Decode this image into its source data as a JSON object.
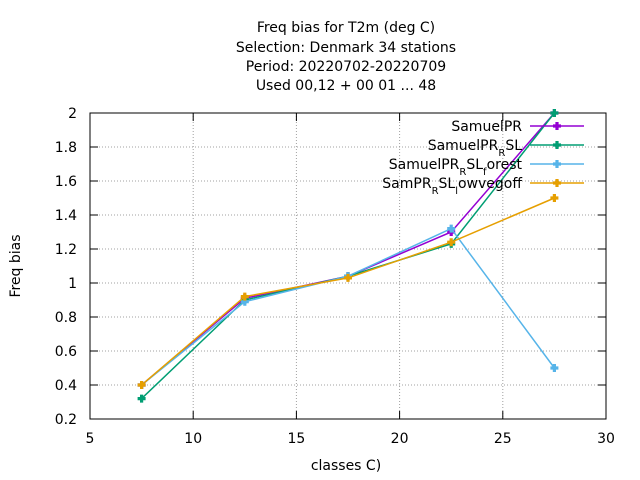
{
  "chart_data": {
    "type": "line",
    "title": [
      "Freq bias  for T2m (deg C)",
      "Selection: Denmark      34 stations",
      "Period: 20220702-20220709",
      "Used  00,12  + 00 01 ... 48"
    ],
    "xlabel": "classes C)",
    "ylabel": "Freq bias",
    "xlim": [
      5,
      30
    ],
    "ylim": [
      0.2,
      2
    ],
    "xticks": [
      5,
      10,
      15,
      20,
      25,
      30
    ],
    "yticks": [
      0.2,
      0.4,
      0.6,
      0.8,
      1,
      1.2,
      1.4,
      1.6,
      1.8,
      2
    ],
    "grid": true,
    "legend_position": "top-right",
    "series": [
      {
        "name": "SamuelPR",
        "legend": [
          {
            "t": "SamuelPR"
          }
        ],
        "color": "#9400d3",
        "x": [
          7.5,
          12.5,
          17.5,
          22.5,
          27.5
        ],
        "y": [
          0.4,
          0.91,
          1.04,
          1.3,
          2.0
        ]
      },
      {
        "name": "SamuelPR_R SL",
        "legend": [
          {
            "t": "SamuelPR"
          },
          {
            "t": "R",
            "sub": true
          },
          {
            "t": "SL"
          }
        ],
        "color": "#009e73",
        "x": [
          7.5,
          12.5,
          17.5,
          22.5,
          27.5
        ],
        "y": [
          0.32,
          0.9,
          1.04,
          1.23,
          2.0
        ]
      },
      {
        "name": "SamuelPR_R SL_f orest",
        "legend": [
          {
            "t": "SamuelPR"
          },
          {
            "t": "R",
            "sub": true
          },
          {
            "t": "SL"
          },
          {
            "t": "f",
            "sub": true
          },
          {
            "t": "orest"
          }
        ],
        "color": "#56b4e9",
        "x": [
          7.5,
          12.5,
          17.5,
          22.5,
          27.5
        ],
        "y": [
          0.4,
          0.89,
          1.04,
          1.32,
          0.5
        ]
      },
      {
        "name": "SamPR_R SL_l owvegoff",
        "legend": [
          {
            "t": "SamPR"
          },
          {
            "t": "R",
            "sub": true
          },
          {
            "t": "SL"
          },
          {
            "t": "l",
            "sub": true
          },
          {
            "t": "owvegoff"
          }
        ],
        "color": "#e69f00",
        "x": [
          7.5,
          12.5,
          17.5,
          22.5,
          27.5
        ],
        "y": [
          0.4,
          0.92,
          1.03,
          1.24,
          1.5
        ]
      }
    ]
  }
}
